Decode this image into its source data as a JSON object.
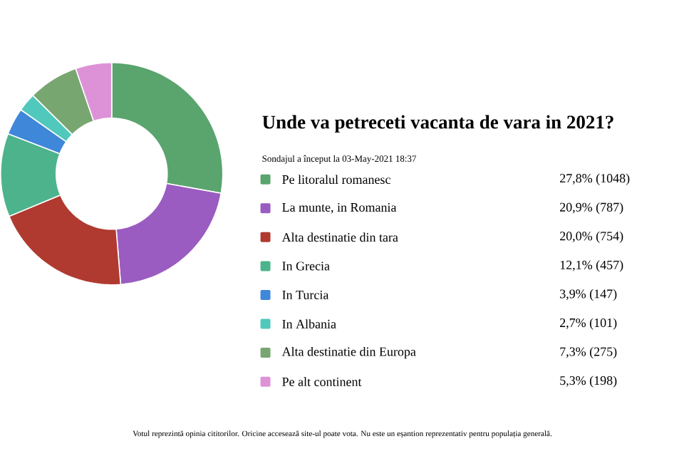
{
  "chart_data": {
    "type": "donut",
    "title": "Unde va petreceti vacanta de vara in 2021?",
    "subtitle": "Sondajul a început la 03-May-2021 18:37",
    "categories": [
      "Pe litoralul romanesc",
      "La munte, in Romania",
      "Alta destinatie din tara",
      "In Grecia",
      "In Turcia",
      "In Albania",
      "Alta destinatie din Europa",
      "Pe alt continent"
    ],
    "values": [
      1048,
      787,
      754,
      457,
      147,
      101,
      275,
      198
    ],
    "value_labels": [
      "27,8% (1048)",
      "20,9% (787)",
      "20,0% (754)",
      "12,1% (457)",
      "3,9% (147)",
      "2,7% (101)",
      "7,3% (275)",
      "5,3% (198)"
    ],
    "colors": [
      "#5aa46e",
      "#9a5cc0",
      "#b03a30",
      "#4db38c",
      "#3f87d8",
      "#50c8bc",
      "#78a670",
      "#dd92d8"
    ],
    "legend": "right",
    "annotations": [
      "Votul reprezintă opinia cititorilor. Oricine accesează site-ul poate vota. Nu este un eșantion reprezentativ pentru populația generală."
    ]
  }
}
